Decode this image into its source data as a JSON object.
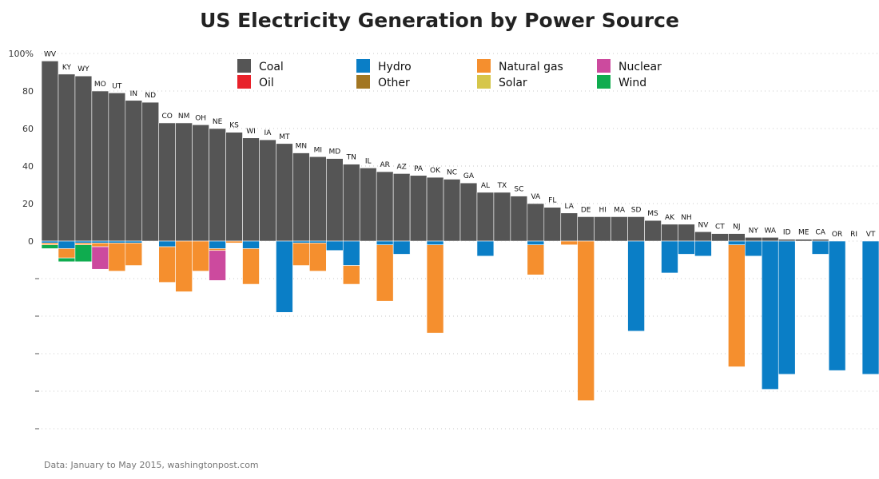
{
  "chart_data": {
    "type": "bar",
    "title": "US Electricity Generation by Power Source",
    "note": "Data: January to May 2015, washingtonpost.com",
    "y_ticks": [
      "100%",
      "80",
      "60",
      "40",
      "20",
      "0"
    ],
    "ylim": [
      -100,
      100
    ],
    "legend_placement": "top",
    "grid": true,
    "sources": [
      "Coal",
      "Hydro",
      "Natural gas",
      "Nuclear",
      "Oil",
      "Other",
      "Solar",
      "Wind"
    ],
    "colors": {
      "Coal": "#555555",
      "Hydro": "#0a7ec6",
      "Natural gas": "#f58f2e",
      "Nuclear": "#cc4a9e",
      "Oil": "#e8212a",
      "Other": "#a27622",
      "Solar": "#d6c64a",
      "Wind": "#0fac4f"
    },
    "stack_order": [
      "Hydro",
      "Natural gas",
      "Nuclear",
      "Oil",
      "Other",
      "Solar",
      "Wind"
    ],
    "categories": [
      "WV",
      "KY",
      "WY",
      "MO",
      "UT",
      "IN",
      "ND",
      "CO",
      "NM",
      "OH",
      "NE",
      "KS",
      "WI",
      "IA",
      "MT",
      "MN",
      "MI",
      "MD",
      "TN",
      "IL",
      "AR",
      "AZ",
      "PA",
      "OK",
      "NC",
      "GA",
      "AL",
      "TX",
      "SC",
      "VA",
      "FL",
      "LA",
      "DE",
      "HI",
      "MA",
      "SD",
      "MS",
      "AK",
      "NH",
      "NV",
      "CT",
      "NJ",
      "NY",
      "WA",
      "ID",
      "ME",
      "CA",
      "OR",
      "RI",
      "VT"
    ],
    "series": [
      {
        "name": "Coal",
        "values": [
          96,
          89,
          88,
          80,
          79,
          75,
          74,
          63,
          63,
          62,
          60,
          58,
          55,
          54,
          52,
          47,
          45,
          44,
          41,
          39,
          37,
          36,
          35,
          34,
          33,
          31,
          26,
          26,
          24,
          20,
          18,
          15,
          13,
          13,
          13,
          13,
          11,
          9,
          9,
          5,
          4,
          4,
          2,
          2,
          1,
          1,
          1,
          0,
          0,
          0
        ]
      },
      {
        "name": "Hydro",
        "values": [
          1,
          4,
          1,
          1,
          1,
          1,
          0,
          3,
          0,
          0,
          4,
          0,
          4,
          0,
          38,
          1,
          1,
          5,
          13,
          0,
          2,
          7,
          0,
          2,
          0,
          0,
          8,
          0,
          0,
          2,
          0,
          0,
          0,
          0,
          0,
          48,
          0,
          17,
          7,
          8,
          0,
          2,
          8,
          79,
          71,
          0,
          7,
          69,
          0,
          71
        ]
      },
      {
        "name": "Natural gas",
        "values": [
          1,
          5,
          1,
          2,
          15,
          12,
          0,
          19,
          27,
          16,
          1,
          1,
          19,
          0,
          0,
          12,
          15,
          0,
          10,
          0,
          30,
          0,
          0,
          47,
          0,
          0,
          0,
          0,
          0,
          16,
          0,
          2,
          85,
          0,
          0,
          0,
          0,
          0,
          0,
          0,
          0,
          65,
          0,
          0,
          0,
          0,
          0,
          0,
          0,
          0
        ]
      },
      {
        "name": "Nuclear",
        "values": [
          0,
          0,
          0,
          12,
          0,
          0,
          0,
          0,
          0,
          0,
          16,
          0,
          0,
          0,
          0,
          0,
          0,
          0,
          0,
          0,
          0,
          0,
          0,
          0,
          0,
          0,
          0,
          0,
          0,
          0,
          0,
          0,
          0,
          0,
          0,
          0,
          0,
          0,
          0,
          0,
          0,
          0,
          0,
          0,
          0,
          0,
          0,
          0,
          0,
          0
        ]
      },
      {
        "name": "Oil",
        "values": [
          0,
          0,
          0,
          0,
          0,
          0,
          0,
          0,
          0,
          0,
          0,
          0,
          0,
          0,
          0,
          0,
          0,
          0,
          0,
          0,
          0,
          0,
          0,
          0,
          0,
          0,
          0,
          0,
          0,
          0,
          0,
          0,
          0,
          0,
          0,
          0,
          0,
          0,
          0,
          0,
          0,
          0,
          0,
          0,
          0,
          0,
          0,
          0,
          0,
          0
        ]
      },
      {
        "name": "Other",
        "values": [
          0,
          0,
          0,
          0,
          0,
          0,
          0,
          0,
          0,
          0,
          0,
          0,
          0,
          0,
          0,
          0,
          0,
          0,
          0,
          0,
          0,
          0,
          0,
          0,
          0,
          0,
          0,
          0,
          0,
          0,
          0,
          0,
          0,
          0,
          0,
          0,
          0,
          0,
          0,
          0,
          0,
          0,
          0,
          0,
          0,
          0,
          0,
          0,
          0,
          0
        ]
      },
      {
        "name": "Solar",
        "values": [
          0,
          0,
          0,
          0,
          0,
          0,
          0,
          0,
          0,
          0,
          0,
          0,
          0,
          0,
          0,
          0,
          0,
          0,
          0,
          0,
          0,
          0,
          0,
          0,
          0,
          0,
          0,
          0,
          0,
          0,
          0,
          0,
          0,
          0,
          0,
          0,
          0,
          0,
          0,
          0,
          0,
          0,
          0,
          0,
          0,
          0,
          0,
          0,
          0,
          0
        ]
      },
      {
        "name": "Wind",
        "values": [
          2,
          2,
          9,
          0,
          0,
          0,
          0,
          0,
          0,
          0,
          0,
          0,
          0,
          0,
          0,
          0,
          0,
          0,
          0,
          0,
          0,
          0,
          0,
          0,
          0,
          0,
          0,
          0,
          0,
          0,
          0,
          0,
          0,
          0,
          0,
          0,
          0,
          0,
          0,
          0,
          0,
          0,
          0,
          0,
          0,
          0,
          0,
          0,
          0,
          0
        ]
      }
    ]
  }
}
